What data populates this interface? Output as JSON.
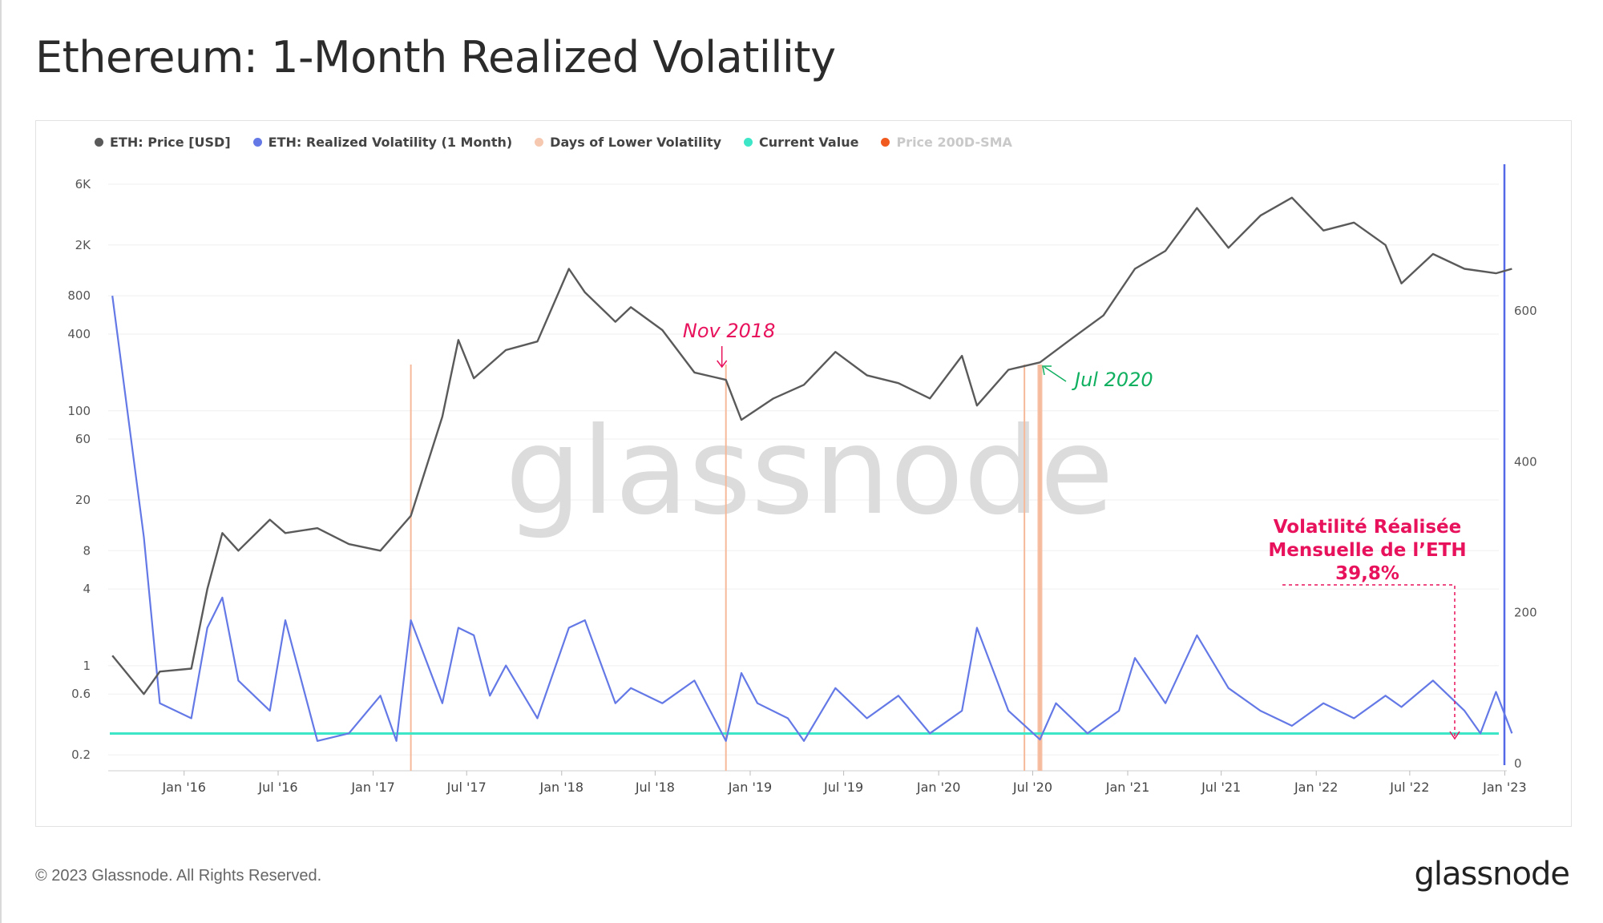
{
  "title": "Ethereum: 1-Month Realized Volatility",
  "footer": "© 2023 Glassnode. All Rights Reserved.",
  "brand": "glassnode",
  "watermark": "glassnode",
  "colors": {
    "price": "#5a5a5a",
    "volatility": "#6479e6",
    "lower_vol": "#f6b99a",
    "current": "#3ee6c8",
    "sma": "#f05a1e",
    "annotation_red": "#e8125c",
    "annotation_green": "#10b060",
    "right_axis": "#5468e8"
  },
  "legend": [
    {
      "label": "ETH: Price [USD]",
      "color": "#5a5a5a",
      "muted": false
    },
    {
      "label": "ETH: Realized Volatility (1 Month)",
      "color": "#6479e6",
      "muted": false
    },
    {
      "label": "Days of Lower Volatility",
      "color": "#f6c8b0",
      "muted": false
    },
    {
      "label": "Current Value",
      "color": "#3ee6c8",
      "muted": false
    },
    {
      "label": "Price 200D-SMA",
      "color": "#f05a1e",
      "muted": true
    }
  ],
  "annotations": {
    "nov2018": "Nov 2018",
    "jul2020": "Jul 2020",
    "callout_line1": "Volatilité Réalisée",
    "callout_line2": "Mensuelle de l’ETH",
    "callout_line3": "39,8%"
  },
  "chart_data": {
    "type": "line",
    "x_ticks": [
      "Jan '16",
      "Jul '16",
      "Jan '17",
      "Jul '17",
      "Jan '18",
      "Jul '18",
      "Jan '19",
      "Jul '19",
      "Jan '20",
      "Jul '20",
      "Jan '21",
      "Jul '21",
      "Jan '22",
      "Jul '22",
      "Jan '23"
    ],
    "left_axis": {
      "scale": "log",
      "ticks": [
        "6K",
        "2K",
        "800",
        "400",
        "100",
        "60",
        "20",
        "8",
        "4",
        "1",
        "0.6",
        "0.2"
      ],
      "range": [
        0.2,
        6000
      ]
    },
    "right_axis": {
      "scale": "linear",
      "ticks": [
        "600",
        "400",
        "200",
        "0"
      ],
      "range": [
        0,
        620
      ]
    },
    "series": [
      {
        "name": "ETH: Price [USD]",
        "axis": "left",
        "points": [
          [
            "2015-08",
            1.2
          ],
          [
            "2015-10",
            0.6
          ],
          [
            "2015-11",
            0.9
          ],
          [
            "2016-01",
            0.95
          ],
          [
            "2016-02",
            4
          ],
          [
            "2016-03",
            11
          ],
          [
            "2016-04",
            8
          ],
          [
            "2016-06",
            14
          ],
          [
            "2016-07",
            11
          ],
          [
            "2016-09",
            12
          ],
          [
            "2016-11",
            9
          ],
          [
            "2017-01",
            8
          ],
          [
            "2017-03",
            15
          ],
          [
            "2017-05",
            90
          ],
          [
            "2017-06",
            360
          ],
          [
            "2017-07",
            180
          ],
          [
            "2017-09",
            300
          ],
          [
            "2017-11",
            350
          ],
          [
            "2018-01",
            1300
          ],
          [
            "2018-02",
            850
          ],
          [
            "2018-04",
            500
          ],
          [
            "2018-05",
            650
          ],
          [
            "2018-07",
            430
          ],
          [
            "2018-09",
            200
          ],
          [
            "2018-11",
            175
          ],
          [
            "2018-12",
            85
          ],
          [
            "2019-02",
            125
          ],
          [
            "2019-04",
            160
          ],
          [
            "2019-06",
            290
          ],
          [
            "2019-08",
            190
          ],
          [
            "2019-10",
            165
          ],
          [
            "2019-12",
            125
          ],
          [
            "2020-02",
            270
          ],
          [
            "2020-03",
            110
          ],
          [
            "2020-05",
            210
          ],
          [
            "2020-07",
            240
          ],
          [
            "2020-09",
            370
          ],
          [
            "2020-11",
            560
          ],
          [
            "2021-01",
            1300
          ],
          [
            "2021-03",
            1800
          ],
          [
            "2021-05",
            3900
          ],
          [
            "2021-07",
            1900
          ],
          [
            "2021-09",
            3400
          ],
          [
            "2021-11",
            4700
          ],
          [
            "2022-01",
            2600
          ],
          [
            "2022-03",
            3000
          ],
          [
            "2022-05",
            2000
          ],
          [
            "2022-06",
            1000
          ],
          [
            "2022-08",
            1700
          ],
          [
            "2022-10",
            1300
          ],
          [
            "2022-12",
            1200
          ],
          [
            "2023-01",
            1300
          ]
        ]
      },
      {
        "name": "ETH: Realized Volatility (1 Month)",
        "axis": "right",
        "points": [
          [
            "2015-08",
            620
          ],
          [
            "2015-10",
            300
          ],
          [
            "2015-11",
            80
          ],
          [
            "2016-01",
            60
          ],
          [
            "2016-02",
            180
          ],
          [
            "2016-03",
            220
          ],
          [
            "2016-04",
            110
          ],
          [
            "2016-06",
            70
          ],
          [
            "2016-07",
            190
          ],
          [
            "2016-09",
            30
          ],
          [
            "2016-11",
            40
          ],
          [
            "2017-01",
            90
          ],
          [
            "2017-02",
            30
          ],
          [
            "2017-03",
            190
          ],
          [
            "2017-05",
            80
          ],
          [
            "2017-06",
            180
          ],
          [
            "2017-07",
            170
          ],
          [
            "2017-08",
            90
          ],
          [
            "2017-09",
            130
          ],
          [
            "2017-11",
            60
          ],
          [
            "2018-01",
            180
          ],
          [
            "2018-02",
            190
          ],
          [
            "2018-04",
            80
          ],
          [
            "2018-05",
            100
          ],
          [
            "2018-07",
            80
          ],
          [
            "2018-09",
            110
          ],
          [
            "2018-11",
            30
          ],
          [
            "2018-12",
            120
          ],
          [
            "2019-01",
            80
          ],
          [
            "2019-03",
            60
          ],
          [
            "2019-04",
            30
          ],
          [
            "2019-06",
            100
          ],
          [
            "2019-08",
            60
          ],
          [
            "2019-10",
            90
          ],
          [
            "2019-12",
            40
          ],
          [
            "2020-02",
            70
          ],
          [
            "2020-03",
            180
          ],
          [
            "2020-05",
            70
          ],
          [
            "2020-07",
            32
          ],
          [
            "2020-08",
            80
          ],
          [
            "2020-10",
            40
          ],
          [
            "2020-12",
            70
          ],
          [
            "2021-01",
            140
          ],
          [
            "2021-03",
            80
          ],
          [
            "2021-05",
            170
          ],
          [
            "2021-07",
            100
          ],
          [
            "2021-09",
            70
          ],
          [
            "2021-11",
            50
          ],
          [
            "2022-01",
            80
          ],
          [
            "2022-03",
            60
          ],
          [
            "2022-05",
            90
          ],
          [
            "2022-06",
            75
          ],
          [
            "2022-08",
            110
          ],
          [
            "2022-10",
            70
          ],
          [
            "2022-11",
            40
          ],
          [
            "2022-12",
            95
          ],
          [
            "2023-01",
            40
          ]
        ]
      },
      {
        "name": "Current Value",
        "axis": "right",
        "value": 39.8
      },
      {
        "name": "Days of Lower Volatility",
        "dates": [
          "2017-03",
          "2018-11",
          "2020-06",
          "2020-07"
        ]
      }
    ]
  }
}
